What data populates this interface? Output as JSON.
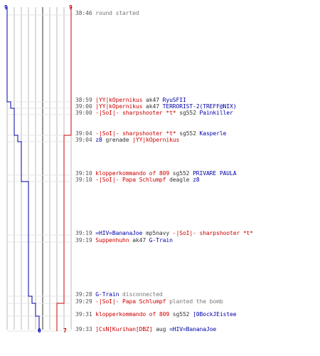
{
  "colors": {
    "red_team": "#cc0000",
    "blue_team": "#0000aa",
    "grid": "#b8b8b8",
    "baseline": "#555555",
    "text": "#333333",
    "time": "#555555"
  },
  "scores": {
    "blue_start": "9",
    "red_start": "9",
    "blue_end": "0",
    "red_end": "7"
  },
  "blue_alive": [
    9,
    9,
    8,
    7,
    7,
    6,
    5,
    5,
    3,
    3,
    3,
    2,
    1,
    0,
    0,
    0
  ],
  "red_alive": [
    9,
    9,
    9,
    9,
    9,
    8,
    8,
    8,
    8,
    8,
    8,
    8,
    7,
    7,
    7,
    7
  ],
  "events": [
    {
      "time": "38:46",
      "parts": [
        {
          "text": " round started",
          "cls": "gray"
        }
      ]
    },
    {
      "time": "38:59",
      "parts": [
        {
          "text": " |YY|kOpernikus",
          "cls": "team-red"
        },
        {
          "text": " ak47 ",
          "cls": "neutral"
        },
        {
          "text": "RyuSFII",
          "cls": "team-blue"
        }
      ]
    },
    {
      "time": "39:00",
      "parts": [
        {
          "text": " |YY|kOpernikus",
          "cls": "team-red"
        },
        {
          "text": " ak47 ",
          "cls": "neutral"
        },
        {
          "text": "TERRORIST-2(TREFF@NIX)",
          "cls": "team-blue"
        }
      ]
    },
    {
      "time": "39:00",
      "parts": [
        {
          "text": " -|SoI|- sharpshooter *t*",
          "cls": "team-red"
        },
        {
          "text": " sg552 ",
          "cls": "neutral"
        },
        {
          "text": "Painkiller",
          "cls": "team-blue"
        }
      ]
    },
    {
      "time": "39:04",
      "parts": [
        {
          "text": " -|SoI|- sharpshooter *t*",
          "cls": "team-red"
        },
        {
          "text": " sg552 ",
          "cls": "neutral"
        },
        {
          "text": "Kasperle",
          "cls": "team-blue"
        }
      ]
    },
    {
      "time": "39:04",
      "parts": [
        {
          "text": " z8",
          "cls": "team-blue"
        },
        {
          "text": " grenade ",
          "cls": "neutral"
        },
        {
          "text": "|YY|kOpernikus",
          "cls": "team-red"
        }
      ]
    },
    {
      "time": "39:10",
      "parts": [
        {
          "text": " klopperkommando of 809",
          "cls": "team-red"
        },
        {
          "text": " sg552 ",
          "cls": "neutral"
        },
        {
          "text": "PRIVARE PAULA",
          "cls": "team-blue"
        }
      ]
    },
    {
      "time": "39:10",
      "parts": [
        {
          "text": " -|SoI|- Papa Schlumpf",
          "cls": "team-red"
        },
        {
          "text": "  deagle ",
          "cls": "neutral"
        },
        {
          "text": "z8",
          "cls": "team-blue"
        }
      ]
    },
    {
      "time": "39:19",
      "parts": [
        {
          "text": " =HIV=BananaJoe",
          "cls": "team-blue"
        },
        {
          "text": " mp5navy ",
          "cls": "neutral"
        },
        {
          "text": "-|SoI|- sharpshooter *t*",
          "cls": "team-red"
        }
      ]
    },
    {
      "time": "39:19",
      "parts": [
        {
          "text": " Suppenhuhn",
          "cls": "team-red"
        },
        {
          "text": " ak47 ",
          "cls": "neutral"
        },
        {
          "text": "G-Train",
          "cls": "team-blue"
        }
      ]
    },
    {
      "time": "39:28",
      "parts": [
        {
          "text": " G-Train",
          "cls": "team-blue"
        },
        {
          "text": " disconnected",
          "cls": "gray"
        }
      ]
    },
    {
      "time": "39:29",
      "parts": [
        {
          "text": " -|SoI|- Papa Schlumpf",
          "cls": "team-red"
        },
        {
          "text": "  planted the bomb",
          "cls": "gray"
        }
      ]
    },
    {
      "time": "39:31",
      "parts": [
        {
          "text": " klopperkommando of 809",
          "cls": "team-red"
        },
        {
          "text": " sg552 ",
          "cls": "neutral"
        },
        {
          "text": "[0BockJEistee",
          "cls": "team-blue"
        }
      ]
    },
    {
      "time": "39:33",
      "parts": [
        {
          "text": " ]CsN[Kurihan[DBZ]",
          "cls": "team-red"
        },
        {
          "text": " aug ",
          "cls": "neutral"
        },
        {
          "text": "=HIV=BananaJoe",
          "cls": "team-blue"
        }
      ]
    }
  ]
}
